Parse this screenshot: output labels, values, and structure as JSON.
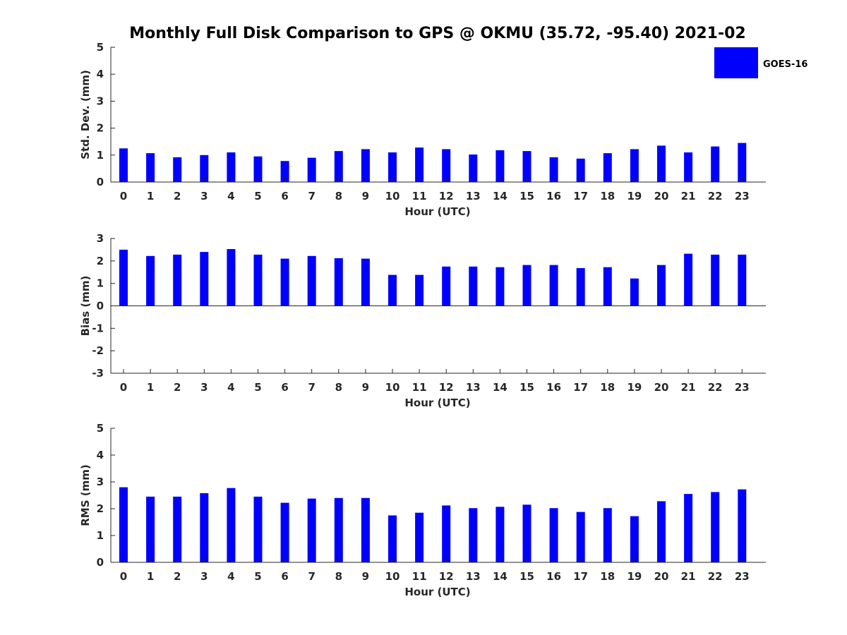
{
  "title": "Monthly Full Disk Comparison to GPS @ OKMU (35.72, -95.40) 2021-02",
  "legend": {
    "label": "GOES-16",
    "color": "#0000ff",
    "placement": "top-right"
  },
  "chart_data": [
    {
      "type": "bar",
      "ylabel": "Std. Dev. (mm)",
      "xlabel": "Hour (UTC)",
      "ylim": [
        0,
        5
      ],
      "yticks": [
        "0",
        "1",
        "2",
        "3",
        "4",
        "5"
      ],
      "categories": [
        "0",
        "1",
        "2",
        "3",
        "4",
        "5",
        "6",
        "7",
        "8",
        "9",
        "10",
        "11",
        "12",
        "13",
        "14",
        "15",
        "16",
        "17",
        "18",
        "19",
        "20",
        "21",
        "22",
        "23"
      ],
      "series": [
        {
          "name": "GOES-16",
          "values": [
            1.25,
            1.07,
            0.92,
            1.0,
            1.1,
            0.95,
            0.78,
            0.9,
            1.15,
            1.22,
            1.1,
            1.28,
            1.22,
            1.02,
            1.18,
            1.15,
            0.92,
            0.87,
            1.07,
            1.22,
            1.35,
            1.1,
            1.32,
            1.45
          ]
        }
      ]
    },
    {
      "type": "bar",
      "ylabel": "Bias (mm)",
      "xlabel": "Hour (UTC)",
      "ylim": [
        -3,
        3
      ],
      "yticks": [
        "-3",
        "-2",
        "-1",
        "0",
        "1",
        "2",
        "3"
      ],
      "categories": [
        "0",
        "1",
        "2",
        "3",
        "4",
        "5",
        "6",
        "7",
        "8",
        "9",
        "10",
        "11",
        "12",
        "13",
        "14",
        "15",
        "16",
        "17",
        "18",
        "19",
        "20",
        "21",
        "22",
        "23"
      ],
      "series": [
        {
          "name": "GOES-16",
          "values": [
            2.5,
            2.22,
            2.28,
            2.4,
            2.53,
            2.28,
            2.1,
            2.22,
            2.12,
            2.1,
            1.38,
            1.38,
            1.75,
            1.75,
            1.72,
            1.82,
            1.82,
            1.68,
            1.72,
            1.22,
            1.82,
            2.32,
            2.28,
            2.28
          ]
        }
      ]
    },
    {
      "type": "bar",
      "ylabel": "RMS (mm)",
      "xlabel": "Hour (UTC)",
      "ylim": [
        0,
        5
      ],
      "yticks": [
        "0",
        "1",
        "2",
        "3",
        "4",
        "5"
      ],
      "categories": [
        "0",
        "1",
        "2",
        "3",
        "4",
        "5",
        "6",
        "7",
        "8",
        "9",
        "10",
        "11",
        "12",
        "13",
        "14",
        "15",
        "16",
        "17",
        "18",
        "19",
        "20",
        "21",
        "22",
        "23"
      ],
      "series": [
        {
          "name": "GOES-16",
          "values": [
            2.8,
            2.45,
            2.45,
            2.58,
            2.77,
            2.45,
            2.22,
            2.38,
            2.4,
            2.4,
            1.75,
            1.85,
            2.12,
            2.02,
            2.07,
            2.15,
            2.02,
            1.88,
            2.02,
            1.72,
            2.28,
            2.55,
            2.62,
            2.72
          ]
        }
      ]
    }
  ]
}
